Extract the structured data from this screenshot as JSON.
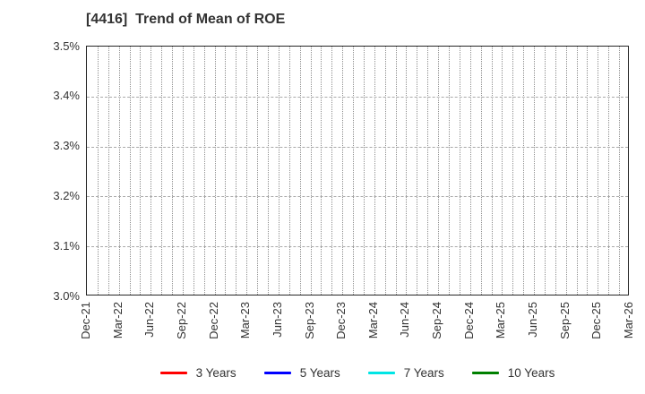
{
  "chart_data": {
    "type": "line",
    "title": "[4416]  Trend of Mean of ROE",
    "xlabel": "",
    "ylabel": "",
    "categories": [
      "Dec-21",
      "Mar-22",
      "Jun-22",
      "Sep-22",
      "Dec-22",
      "Mar-23",
      "Jun-23",
      "Sep-23",
      "Dec-23",
      "Mar-24",
      "Jun-24",
      "Sep-24",
      "Dec-24",
      "Mar-25",
      "Jun-25",
      "Sep-25",
      "Dec-25",
      "Mar-26"
    ],
    "y_ticks": [
      "3.0%",
      "3.1%",
      "3.2%",
      "3.3%",
      "3.4%",
      "3.5%"
    ],
    "ylim": [
      3.0,
      3.5
    ],
    "grid": true,
    "x_minor_divisions_per_interval": 3,
    "legend_position": "bottom",
    "plot_area_empty": true,
    "series": [
      {
        "name": "3 Years",
        "color": "#ff0000",
        "values": []
      },
      {
        "name": "5 Years",
        "color": "#0000ff",
        "values": []
      },
      {
        "name": "7 Years",
        "color": "#00e5e5",
        "values": []
      },
      {
        "name": "10 Years",
        "color": "#008000",
        "values": []
      }
    ]
  },
  "colors": {
    "title_text": "#333333",
    "axis_text": "#333333",
    "spine": "#262626",
    "vertical_grid": "#8f8f8f",
    "horizontal_grid": "#a9a9a9",
    "background": "#ffffff"
  }
}
